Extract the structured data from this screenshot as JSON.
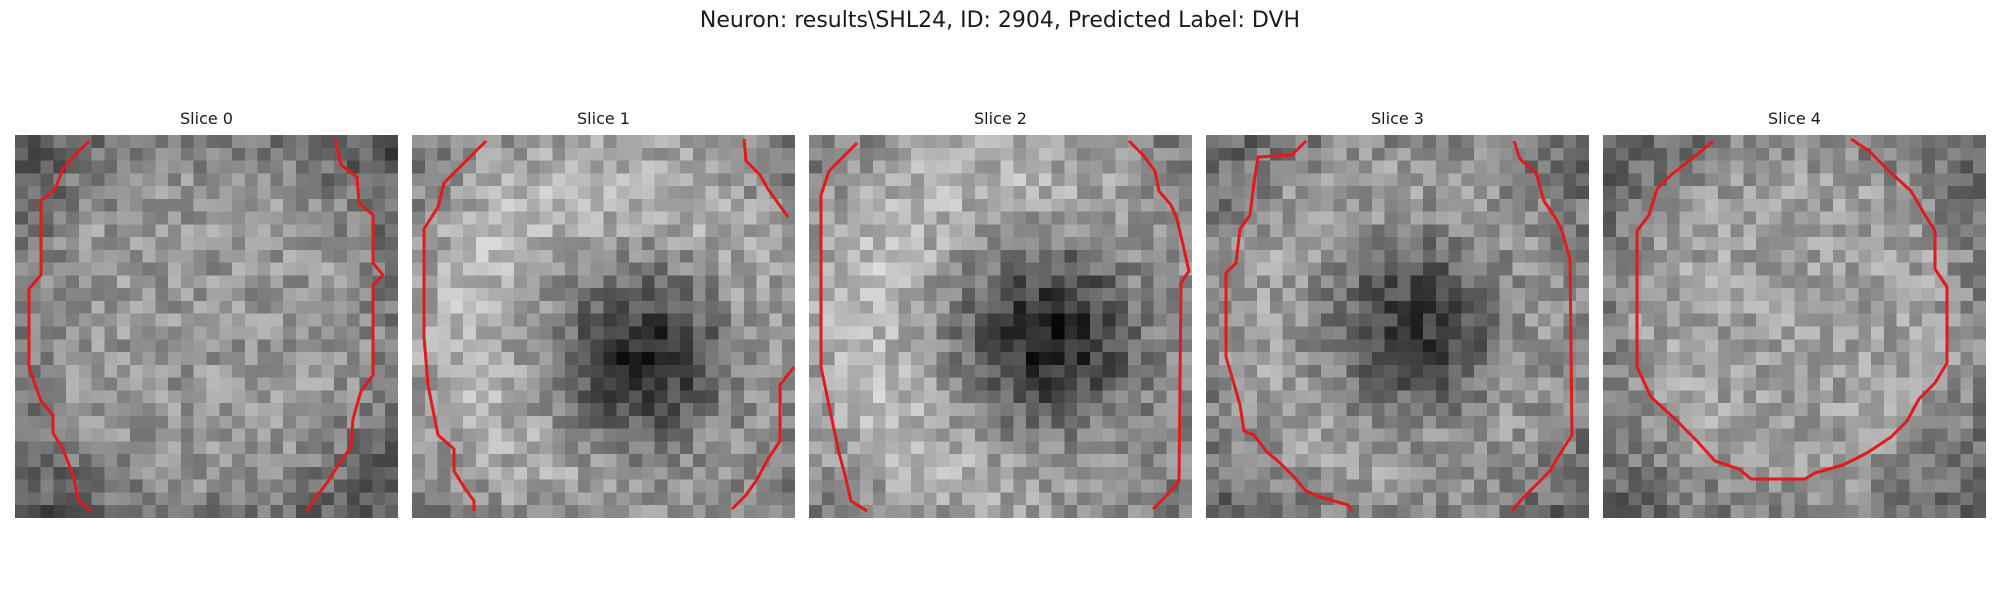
{
  "figure": {
    "title": "Neuron: results\\SHL24, ID: 2904, Predicted Label: DVH"
  },
  "panels": [
    {
      "title": "Slice 0"
    },
    {
      "title": "Slice 1"
    },
    {
      "title": "Slice 2"
    },
    {
      "title": "Slice 3"
    },
    {
      "title": "Slice 4"
    }
  ],
  "colors": {
    "contour": "#e31a1c",
    "background": "#ffffff",
    "text": "#1a1a1a"
  }
}
